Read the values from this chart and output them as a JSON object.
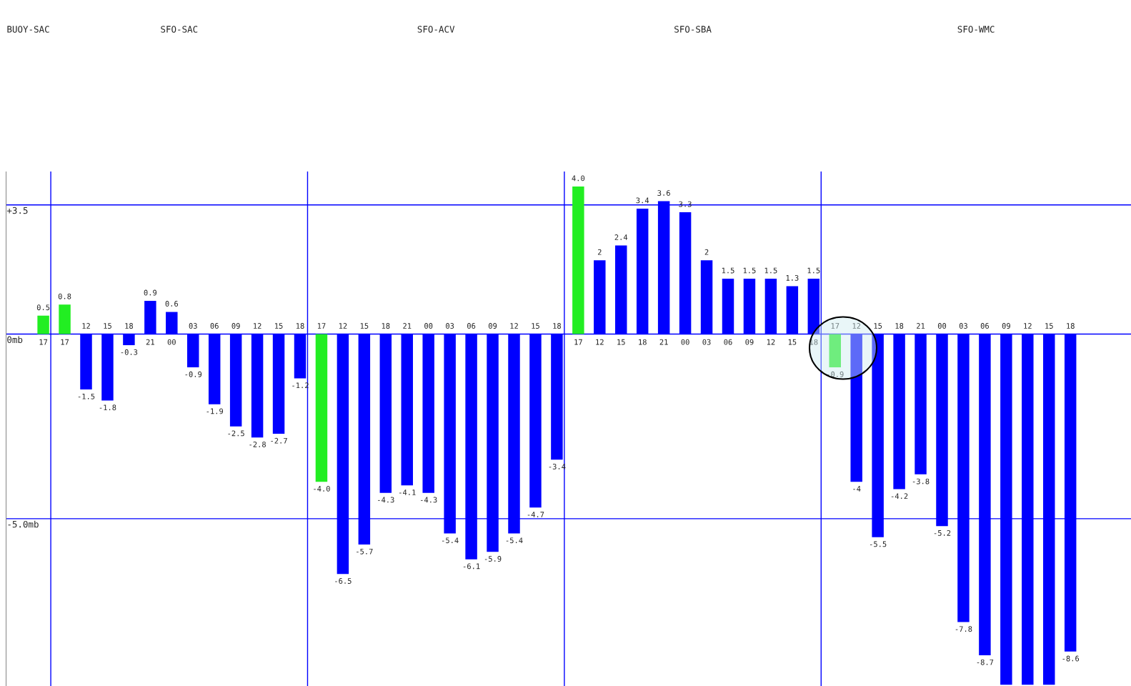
{
  "chart_data": {
    "type": "bar",
    "categories": [
      "17",
      "17",
      "12",
      "15",
      "18",
      "21",
      "00",
      "03",
      "06",
      "09",
      "12",
      "15",
      "18",
      "17",
      "12",
      "15",
      "18",
      "21",
      "00",
      "03",
      "06",
      "09",
      "12",
      "15",
      "18",
      "17",
      "12",
      "15",
      "18",
      "21",
      "00",
      "03",
      "06",
      "09",
      "12",
      "15",
      "18",
      "17",
      "12",
      "15",
      "18",
      "21",
      "00",
      "03",
      "06",
      "09",
      "12",
      "15",
      "18"
    ],
    "values": [
      0.5,
      0.8,
      -1.5,
      -1.8,
      -0.3,
      0.9,
      0.6,
      -0.9,
      -1.9,
      -2.5,
      -2.8,
      -2.7,
      -1.2,
      -4.0,
      -6.5,
      -5.7,
      -4.3,
      -4.1,
      -4.3,
      -5.4,
      -6.1,
      -5.9,
      -5.4,
      -4.7,
      -3.4,
      4.0,
      2,
      2.4,
      3.4,
      3.6,
      3.3,
      2,
      1.5,
      1.5,
      1.5,
      1.3,
      1.5,
      -0.9,
      -4,
      -5.5,
      -4.2,
      -3.8,
      -5.2,
      -7.8,
      -8.7,
      -9.5,
      -9.5,
      -9.5,
      -8.6
    ],
    "colors": [
      "#22ee22",
      "#22ee22",
      "#0000ff",
      "#0000ff",
      "#0000ff",
      "#0000ff",
      "#0000ff",
      "#0000ff",
      "#0000ff",
      "#0000ff",
      "#0000ff",
      "#0000ff",
      "#0000ff",
      "#22ee22",
      "#0000ff",
      "#0000ff",
      "#0000ff",
      "#0000ff",
      "#0000ff",
      "#0000ff",
      "#0000ff",
      "#0000ff",
      "#0000ff",
      "#0000ff",
      "#0000ff",
      "#22ee22",
      "#0000ff",
      "#0000ff",
      "#0000ff",
      "#0000ff",
      "#0000ff",
      "#0000ff",
      "#0000ff",
      "#0000ff",
      "#0000ff",
      "#0000ff",
      "#0000ff",
      "#22ee22",
      "#0000ff",
      "#0000ff",
      "#0000ff",
      "#0000ff",
      "#0000ff",
      "#0000ff",
      "#0000ff",
      "#0000ff",
      "#0000ff",
      "#0000ff",
      "#0000ff"
    ],
    "value_labels": [
      "0.5",
      "0.8",
      "-1.5",
      "-1.8",
      "-0.3",
      "0.9",
      "0.6",
      "-0.9",
      "-1.9",
      "-2.5",
      "-2.8",
      "-2.7",
      "-1.2",
      "-4.0",
      "-6.5",
      "-5.7",
      "-4.3",
      "-4.1",
      "-4.3",
      "-5.4",
      "-6.1",
      "-5.9",
      "-5.4",
      "-4.7",
      "-3.4",
      "4.0",
      "2",
      "2.4",
      "3.4",
      "3.6",
      "3.3",
      "2",
      "1.5",
      "1.5",
      "1.5",
      "1.3",
      "1.5",
      "-0.9",
      "-4",
      "-5.5",
      "-4.2",
      "-3.8",
      "-5.2",
      "-7.8",
      "-8.7",
      null,
      null,
      null,
      "-8.6"
    ],
    "annotations": [
      "BUOY-SAC",
      "SFO-SAC",
      "SFO-ACV",
      "SFO-SBA",
      "SFO-WMC"
    ],
    "tick_labels": "x",
    "ref_lines": [
      {
        "axis": "y",
        "value": 3.5,
        "label": "+3.5",
        "color": "#0000ff"
      },
      {
        "axis": "y",
        "value": 0,
        "label": "0mb",
        "color": "#0000ff"
      },
      {
        "axis": "y",
        "value": -5.0,
        "label": "-5.0mb",
        "color": "#0000ff"
      }
    ]
  }
}
